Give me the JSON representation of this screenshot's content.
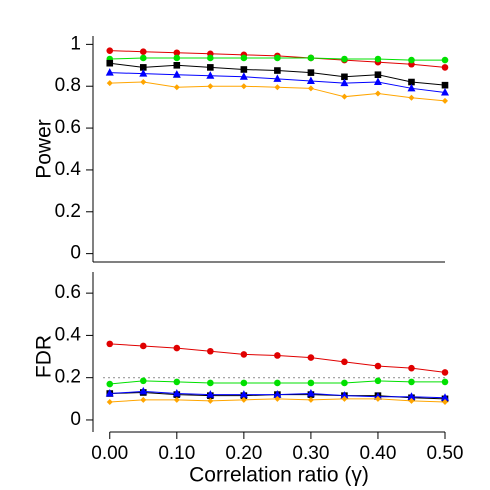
{
  "chart_data": [
    {
      "type": "line",
      "ylabel": "Power",
      "x": [
        0,
        0.05,
        0.1,
        0.15,
        0.2,
        0.25,
        0.3,
        0.35,
        0.4,
        0.45,
        0.5
      ],
      "xlim": [
        -0.025,
        0.5
      ],
      "ylim": [
        -0.04,
        1.04
      ],
      "yticks": [
        0,
        0.2,
        0.4,
        0.6,
        0.8,
        1
      ],
      "series": [
        {
          "color": "#e00000",
          "marker": "circle",
          "values": [
            0.97,
            0.965,
            0.96,
            0.955,
            0.95,
            0.945,
            0.935,
            0.925,
            0.915,
            0.905,
            0.89
          ]
        },
        {
          "color": "#00e000",
          "marker": "circle",
          "values": [
            0.93,
            0.935,
            0.935,
            0.935,
            0.935,
            0.935,
            0.935,
            0.93,
            0.93,
            0.925,
            0.925
          ]
        },
        {
          "color": "#000000",
          "marker": "square",
          "values": [
            0.91,
            0.89,
            0.9,
            0.89,
            0.88,
            0.875,
            0.865,
            0.845,
            0.855,
            0.82,
            0.805
          ]
        },
        {
          "color": "#0000ff",
          "marker": "triangle",
          "values": [
            0.865,
            0.86,
            0.855,
            0.85,
            0.845,
            0.835,
            0.825,
            0.815,
            0.82,
            0.79,
            0.77
          ]
        },
        {
          "color": "#ffa500",
          "marker": "diamond",
          "values": [
            0.815,
            0.82,
            0.795,
            0.8,
            0.8,
            0.795,
            0.79,
            0.75,
            0.765,
            0.745,
            0.73
          ]
        }
      ]
    },
    {
      "type": "line",
      "ylabel": "FDR",
      "xlabel": "Correlation ratio (γ)",
      "x": [
        0,
        0.05,
        0.1,
        0.15,
        0.2,
        0.25,
        0.3,
        0.35,
        0.4,
        0.45,
        0.5
      ],
      "xlim": [
        -0.025,
        0.5
      ],
      "xticks": [
        {
          "value": 0,
          "label": "0.00"
        },
        {
          "value": 0.1,
          "label": "0.10"
        },
        {
          "value": 0.2,
          "label": "0.20"
        },
        {
          "value": 0.3,
          "label": "0.30"
        },
        {
          "value": 0.4,
          "label": "0.40"
        },
        {
          "value": 0.5,
          "label": "0.50"
        }
      ],
      "ylim": [
        -0.057,
        0.7
      ],
      "yticks": [
        0,
        0.2,
        0.4,
        0.6
      ],
      "reference_line": 0.2,
      "series": [
        {
          "color": "#e00000",
          "marker": "circle",
          "values": [
            0.36,
            0.35,
            0.34,
            0.325,
            0.31,
            0.305,
            0.295,
            0.275,
            0.255,
            0.245,
            0.225
          ]
        },
        {
          "color": "#00e000",
          "marker": "circle",
          "values": [
            0.17,
            0.185,
            0.18,
            0.175,
            0.175,
            0.175,
            0.175,
            0.175,
            0.185,
            0.18,
            0.18
          ]
        },
        {
          "color": "#000000",
          "marker": "square",
          "values": [
            0.125,
            0.13,
            0.12,
            0.115,
            0.115,
            0.12,
            0.12,
            0.115,
            0.115,
            0.105,
            0.1
          ]
        },
        {
          "color": "#0000ff",
          "marker": "triangle",
          "values": [
            0.125,
            0.135,
            0.125,
            0.12,
            0.12,
            0.12,
            0.125,
            0.115,
            0.11,
            0.11,
            0.105
          ]
        },
        {
          "color": "#ffa500",
          "marker": "diamond",
          "values": [
            0.085,
            0.095,
            0.095,
            0.09,
            0.095,
            0.1,
            0.095,
            0.1,
            0.1,
            0.09,
            0.085
          ]
        }
      ]
    }
  ]
}
